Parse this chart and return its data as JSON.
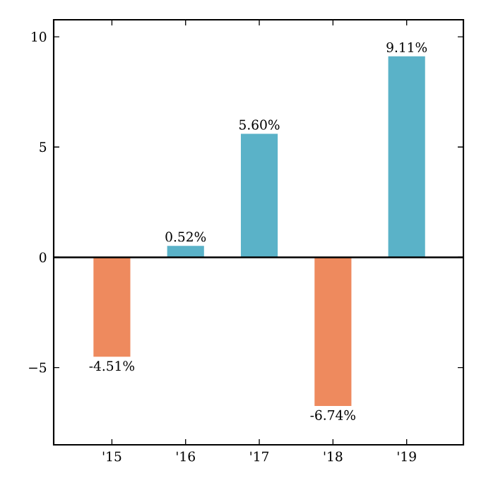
{
  "chart_data": {
    "type": "bar",
    "categories": [
      "'15",
      "'16",
      "'17",
      "'18",
      "'19"
    ],
    "values": [
      -4.51,
      0.52,
      5.6,
      -6.74,
      9.11
    ],
    "colors": [
      "#ee8a5e",
      "#5ab2c8",
      "#5ab2c8",
      "#ee8a5e",
      "#5ab2c8"
    ],
    "value_labels": [
      "-4.51%",
      "0.52%",
      "5.60%",
      "-6.74%",
      "9.11%"
    ],
    "ylim": [
      -8.5,
      10.77
    ],
    "yticks": [
      {
        "value": -5,
        "label": "−5"
      },
      0,
      5,
      10
    ],
    "ref_lines": [
      {
        "axis": "y",
        "value": 0,
        "color": "#000000"
      }
    ]
  }
}
